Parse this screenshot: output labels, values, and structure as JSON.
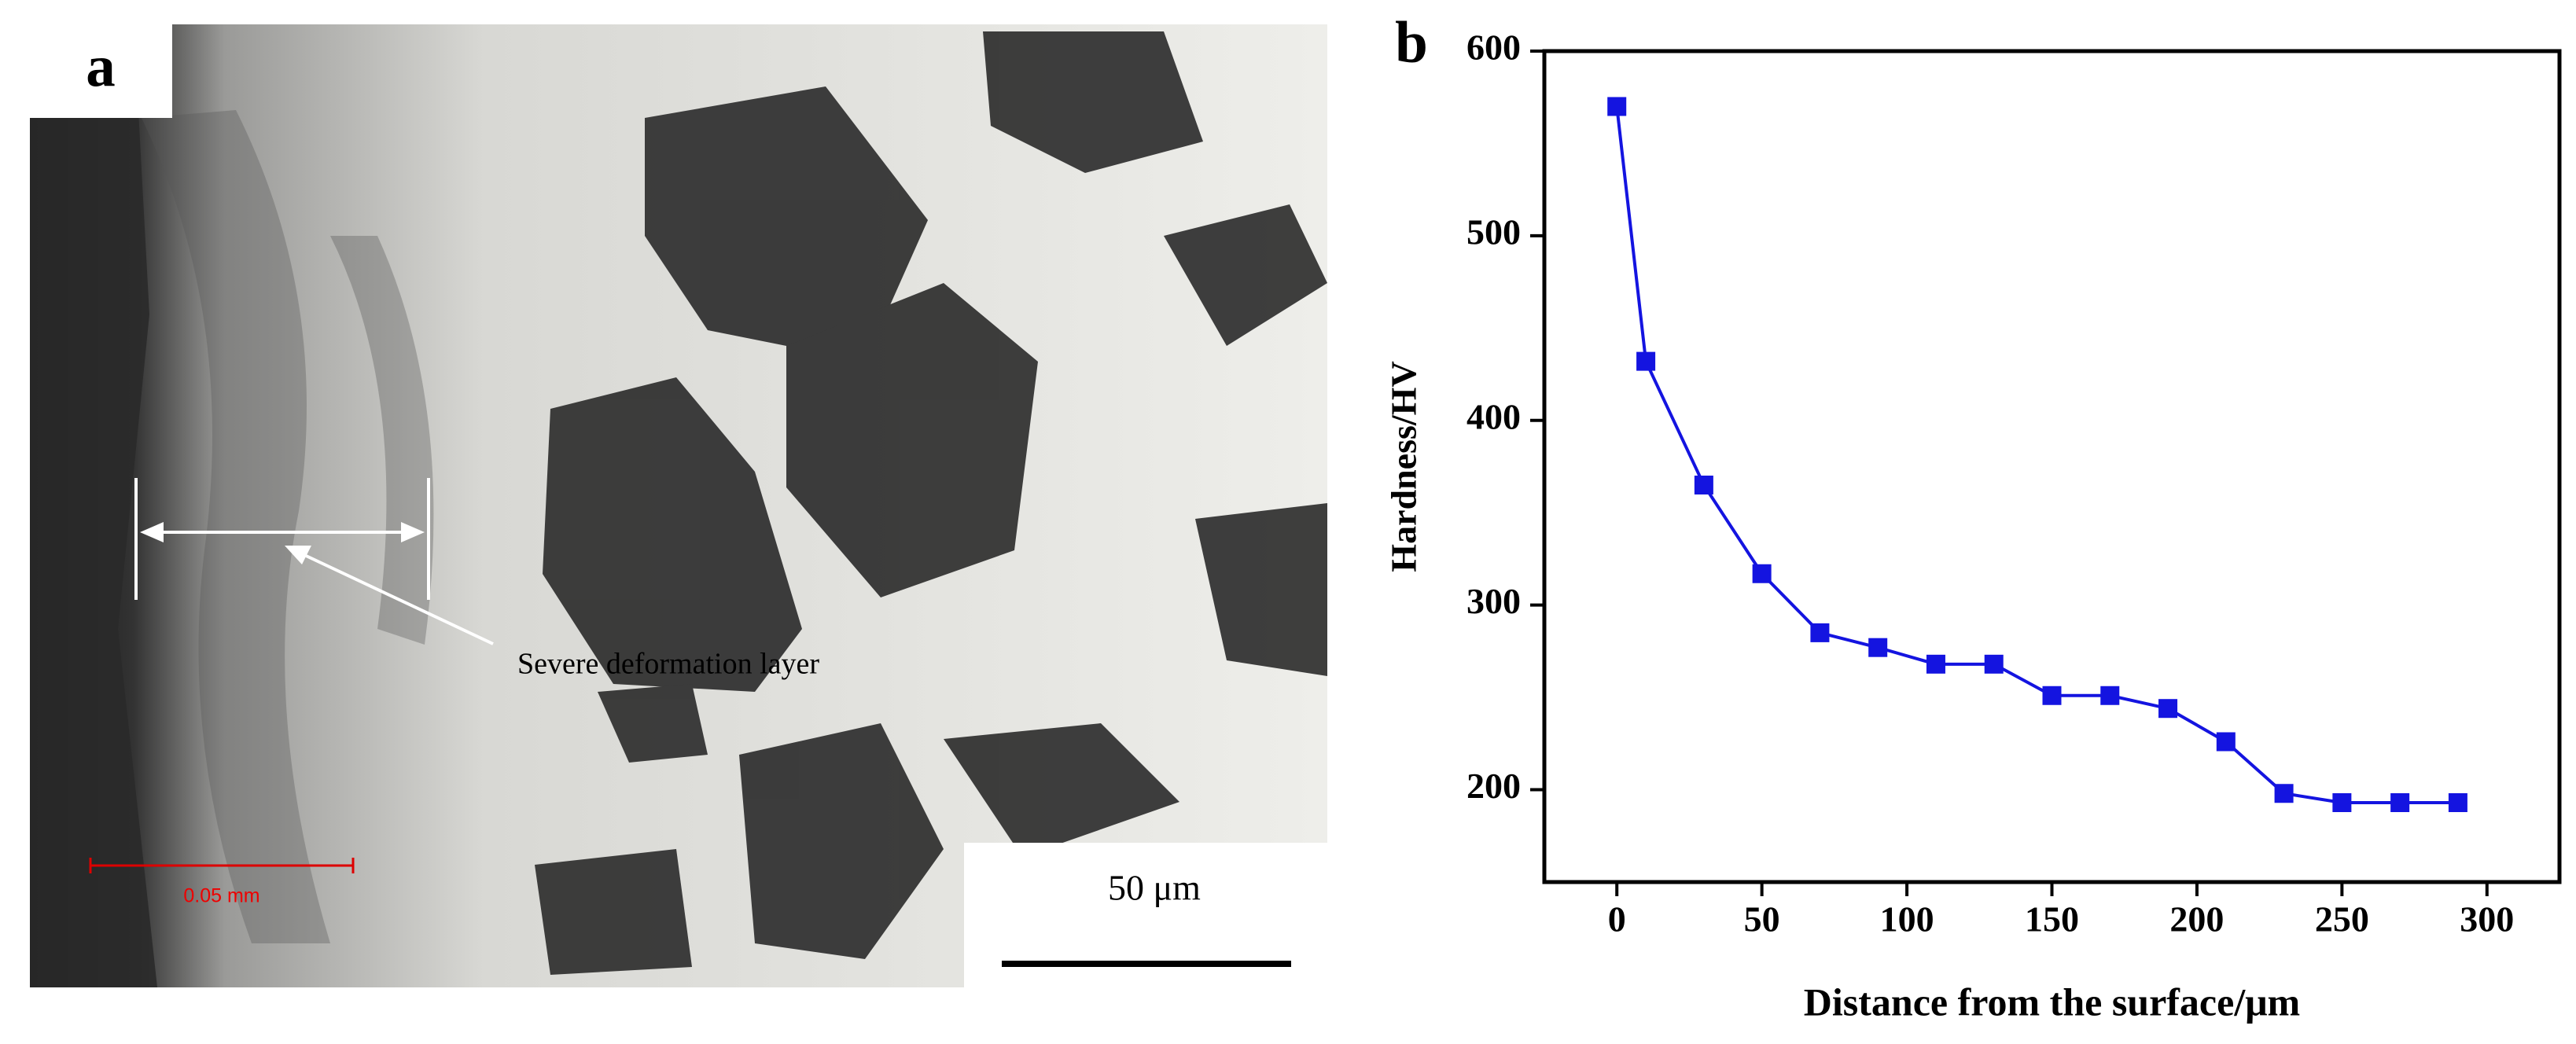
{
  "micrograph": {
    "panel_label": "a",
    "annotation": "Severe deformation layer",
    "scale_bar": "50 μm",
    "ruler_label": "0.05 mm"
  },
  "chart_data": {
    "type": "line",
    "panel_label": "b",
    "x_label": "Distance from the surface/μm",
    "y_label": "Hardness/HV",
    "x": [
      0,
      10,
      30,
      50,
      70,
      90,
      110,
      130,
      150,
      170,
      190,
      210,
      230,
      250,
      270,
      290
    ],
    "series": [
      {
        "color": "#1414e0",
        "values": [
          570,
          432,
          365,
          317,
          285,
          277,
          268,
          268,
          251,
          251,
          244,
          226,
          198,
          193,
          193,
          193
        ]
      }
    ],
    "xlim": [
      -25,
      325
    ],
    "xticks": [
      0,
      50,
      100,
      150,
      200,
      250,
      300
    ],
    "ylim": [
      150,
      600
    ],
    "yticks": [
      200,
      300,
      400,
      500,
      600
    ]
  }
}
